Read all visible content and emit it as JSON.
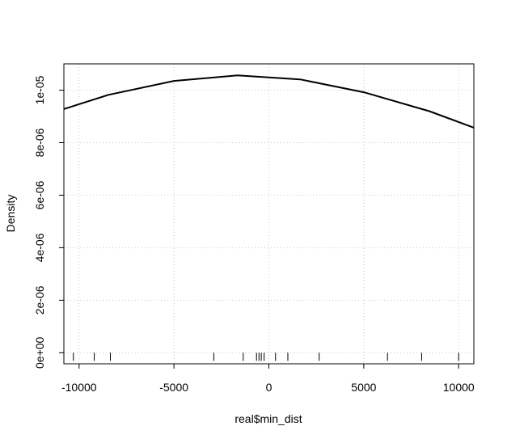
{
  "chart_data": {
    "type": "line",
    "title": "",
    "xlabel": "real$min_dist",
    "ylabel": "Density",
    "xlim": [
      -10800,
      10800
    ],
    "ylim": [
      -4.2e-07,
      1.1e-05
    ],
    "x_ticks": [
      {
        "value": -10000,
        "label": "-10000"
      },
      {
        "value": -5000,
        "label": "-5000"
      },
      {
        "value": 0,
        "label": "0"
      },
      {
        "value": 5000,
        "label": "5000"
      },
      {
        "value": 10000,
        "label": "10000"
      }
    ],
    "y_ticks": [
      {
        "value": 0,
        "label": "0e+00"
      },
      {
        "value": 2e-06,
        "label": "2e-06"
      },
      {
        "value": 4e-06,
        "label": "4e-06"
      },
      {
        "value": 6e-06,
        "label": "6e-06"
      },
      {
        "value": 8e-06,
        "label": "8e-06"
      },
      {
        "value": 1e-05,
        "label": "1e-05"
      }
    ],
    "grid": true,
    "grid_style": "dotted",
    "series": [
      {
        "color": "#000000",
        "points": [
          {
            "x": -10800,
            "y": 9.28e-06
          },
          {
            "x": -8450,
            "y": 9.82e-06
          },
          {
            "x": -5000,
            "y": 1.035e-05
          },
          {
            "x": -1650,
            "y": 1.056e-05
          },
          {
            "x": 1650,
            "y": 1.041e-05
          },
          {
            "x": 5000,
            "y": 9.92e-06
          },
          {
            "x": 8450,
            "y": 9.2e-06
          },
          {
            "x": 10800,
            "y": 8.57e-06
          }
        ]
      }
    ],
    "rug": [
      -10300,
      -9200,
      -8350,
      -2900,
      -1350,
      -650,
      -520,
      -400,
      -250,
      350,
      1000,
      2650,
      6250,
      8050,
      10000
    ]
  }
}
